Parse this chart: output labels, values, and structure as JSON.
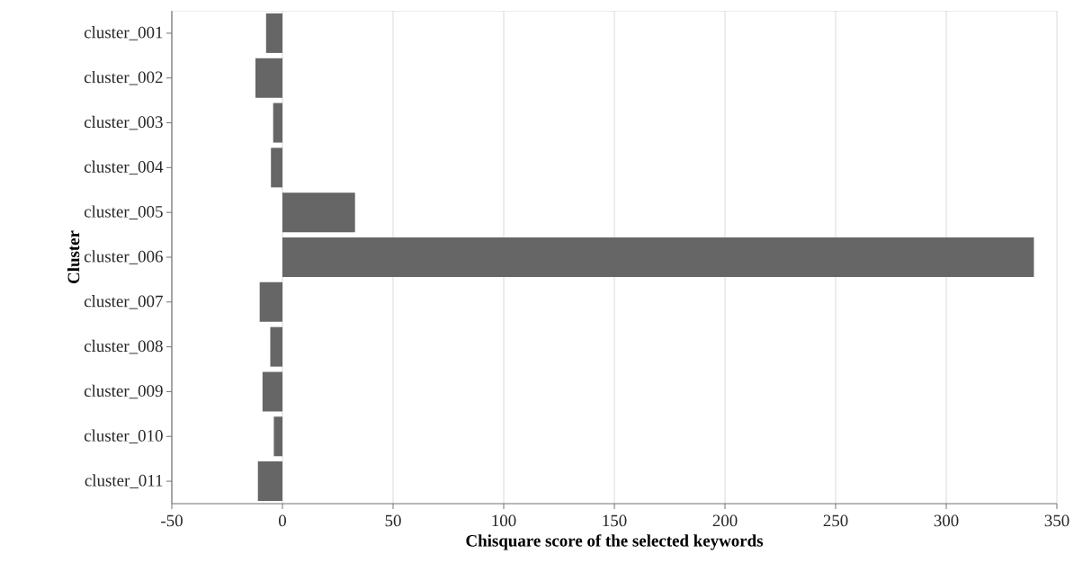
{
  "chart_data": {
    "type": "bar",
    "orientation": "horizontal",
    "xlabel": "Chisquare score of the selected keywords",
    "ylabel": "Cluster",
    "categories": [
      "cluster_001",
      "cluster_002",
      "cluster_003",
      "cluster_004",
      "cluster_005",
      "cluster_006",
      "cluster_007",
      "cluster_008",
      "cluster_009",
      "cluster_010",
      "cluster_011"
    ],
    "values": [
      -7.4,
      -12.2,
      -4.2,
      -5.2,
      32.8,
      339.6,
      -10.3,
      -5.5,
      -9,
      -3.9,
      -11.1
    ],
    "color": "#666666",
    "xlim": [
      -50,
      350
    ],
    "xticks": [
      -50,
      0,
      50,
      100,
      150,
      200,
      250,
      300,
      350
    ],
    "grid": "x"
  }
}
